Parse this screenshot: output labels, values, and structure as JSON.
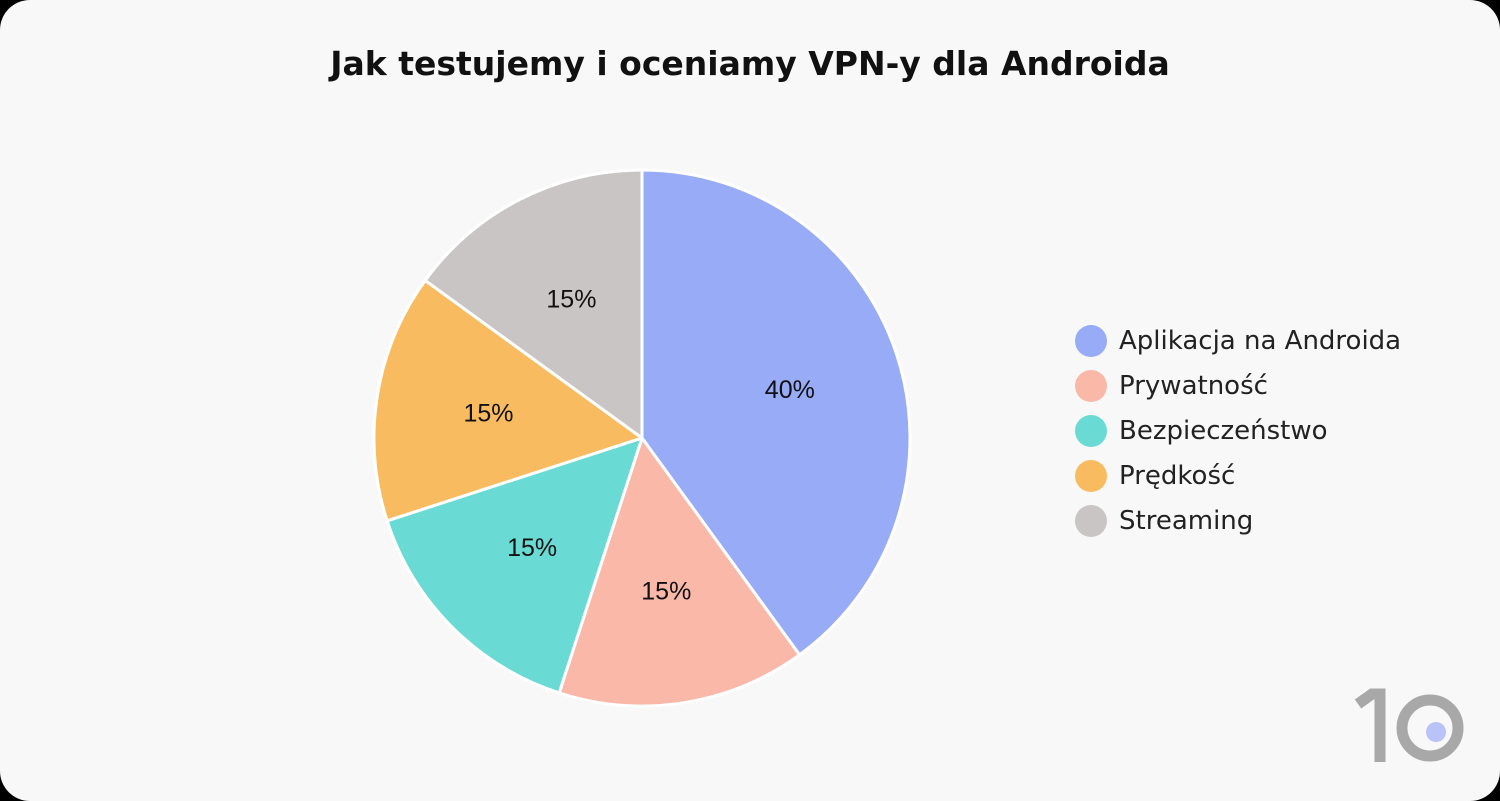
{
  "chart_data": {
    "type": "pie",
    "title": "Jak testujemy i oceniamy VPN-y dla Androida",
    "slices": [
      {
        "label": "Aplikacja na Androida",
        "value": 40,
        "display": "40%",
        "color": "#98abf7"
      },
      {
        "label": "Prywatność",
        "value": 15,
        "display": "15%",
        "color": "#fab8a8"
      },
      {
        "label": "Bezpieczeństwo",
        "value": 15,
        "display": "15%",
        "color": "#6adbd4"
      },
      {
        "label": "Prędkość",
        "value": 15,
        "display": "15%",
        "color": "#f9bb5f"
      },
      {
        "label": "Streaming",
        "value": 15,
        "display": "15%",
        "color": "#c9c5c4"
      }
    ],
    "legend_position": "right"
  },
  "logo": {
    "text": "10",
    "color": "#a8a8a8",
    "dot_color": "#b9c3f7"
  }
}
